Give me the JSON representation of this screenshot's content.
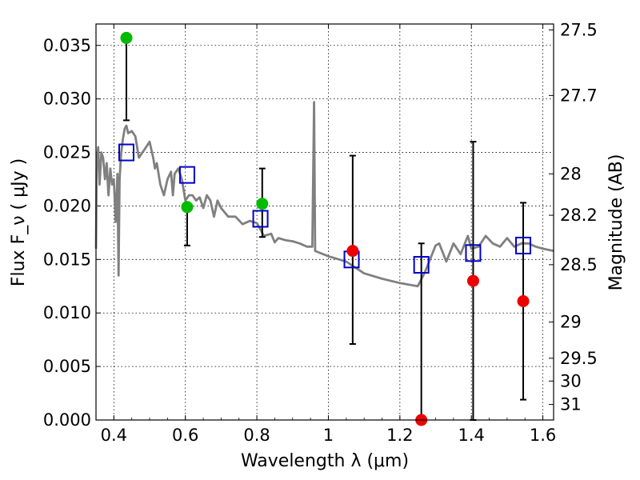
{
  "chart_data": {
    "type": "scatter",
    "xlabel": "Wavelength  λ (μm)",
    "ylabel": "Flux  F_ν  ( μJy )",
    "ylabel_right": "Magnitude (AB)",
    "xlim": [
      0.35,
      1.63
    ],
    "ylim": [
      0.0,
      0.037
    ],
    "grid": true,
    "x_ticks": [
      0.4,
      0.6,
      0.8,
      1.0,
      1.2,
      1.4,
      1.6
    ],
    "x_tick_labels": [
      "0.4",
      "0.6",
      "0.8",
      "1",
      "1.2",
      "1.4",
      "1.6"
    ],
    "y_ticks": [
      0.0,
      0.005,
      0.01,
      0.015,
      0.02,
      0.025,
      0.03,
      0.035
    ],
    "y_tick_labels": [
      "0.000",
      "0.005",
      "0.010",
      "0.015",
      "0.020",
      "0.025",
      "0.030",
      "0.035"
    ],
    "right_ticks": [
      {
        "label": "27.5",
        "flux": 0.03645
      },
      {
        "label": "27.7",
        "flux": 0.03032
      },
      {
        "label": "28",
        "flux": 0.023
      },
      {
        "label": "28.2",
        "flux": 0.01913
      },
      {
        "label": "28.5",
        "flux": 0.01451
      },
      {
        "label": "29",
        "flux": 0.00915
      },
      {
        "label": "29.5",
        "flux": 0.00577
      },
      {
        "label": "30",
        "flux": 0.00364
      },
      {
        "label": "31",
        "flux": 0.00145
      }
    ],
    "series": [
      {
        "kind": "line",
        "color": "#808080",
        "x": [
          0.35,
          0.352,
          0.356,
          0.36,
          0.365,
          0.37,
          0.375,
          0.38,
          0.385,
          0.39,
          0.395,
          0.4,
          0.405,
          0.41,
          0.413,
          0.416,
          0.42,
          0.425,
          0.43,
          0.435,
          0.44,
          0.45,
          0.46,
          0.47,
          0.48,
          0.49,
          0.5,
          0.51,
          0.515,
          0.52,
          0.53,
          0.54,
          0.55,
          0.56,
          0.565,
          0.57,
          0.58,
          0.59,
          0.6,
          0.61,
          0.62,
          0.63,
          0.64,
          0.65,
          0.66,
          0.67,
          0.68,
          0.69,
          0.7,
          0.72,
          0.74,
          0.76,
          0.78,
          0.8,
          0.82,
          0.84,
          0.85,
          0.86,
          0.88,
          0.9,
          0.92,
          0.94,
          0.955,
          0.96,
          0.963,
          0.97,
          1.0,
          1.05,
          1.1,
          1.15,
          1.2,
          1.25,
          1.27,
          1.3,
          1.31,
          1.33,
          1.35,
          1.37,
          1.39,
          1.4,
          1.42,
          1.44,
          1.46,
          1.48,
          1.5,
          1.52,
          1.54,
          1.56,
          1.58,
          1.6,
          1.63
        ],
        "y": [
          0.016,
          0.024,
          0.0255,
          0.022,
          0.025,
          0.0245,
          0.0225,
          0.024,
          0.021,
          0.0235,
          0.022,
          0.0225,
          0.0185,
          0.023,
          0.0135,
          0.0225,
          0.0248,
          0.0262,
          0.0272,
          0.0275,
          0.0268,
          0.027,
          0.0265,
          0.0245,
          0.025,
          0.0255,
          0.026,
          0.0245,
          0.0235,
          0.024,
          0.022,
          0.021,
          0.0225,
          0.0232,
          0.021,
          0.023,
          0.0235,
          0.0225,
          0.0205,
          0.021,
          0.021,
          0.0205,
          0.0208,
          0.0198,
          0.021,
          0.0205,
          0.019,
          0.0205,
          0.0198,
          0.019,
          0.019,
          0.0183,
          0.0186,
          0.0184,
          0.0172,
          0.0174,
          0.0166,
          0.017,
          0.0168,
          0.0167,
          0.0165,
          0.0162,
          0.0162,
          0.0297,
          0.0158,
          0.0157,
          0.0153,
          0.0148,
          0.0137,
          0.0132,
          0.0128,
          0.0125,
          0.0138,
          0.0163,
          0.0165,
          0.0148,
          0.0165,
          0.0155,
          0.0172,
          0.016,
          0.0162,
          0.0172,
          0.0165,
          0.0162,
          0.017,
          0.0162,
          0.0165,
          0.0165,
          0.0162,
          0.016,
          0.0158
        ]
      },
      {
        "kind": "markers",
        "marker": "open-square",
        "color": "#0000cc",
        "x": [
          0.435,
          0.605,
          0.81,
          1.065,
          1.26,
          1.405,
          1.545
        ],
        "y": [
          0.025,
          0.0229,
          0.0188,
          0.015,
          0.0145,
          0.0156,
          0.0163
        ]
      },
      {
        "kind": "markers",
        "marker": "filled-circle",
        "color": "#00bb00",
        "x": [
          0.435,
          0.605,
          0.815
        ],
        "y": [
          0.0357,
          0.0199,
          0.0202
        ],
        "err_low": [
          0.0077,
          0.0036,
          0.0031
        ],
        "err_high": [
          0.0,
          0.0,
          0.0033
        ]
      },
      {
        "kind": "markers",
        "marker": "filled-circle",
        "color": "#ee0000",
        "x": [
          1.068,
          1.26,
          1.405,
          1.545
        ],
        "y": [
          0.0158,
          0.0,
          0.013,
          0.0111
        ],
        "err_low": [
          0.0087,
          0.0,
          0.013,
          0.0092
        ],
        "err_high": [
          0.0089,
          0.0165,
          0.013,
          0.0092
        ]
      }
    ]
  }
}
